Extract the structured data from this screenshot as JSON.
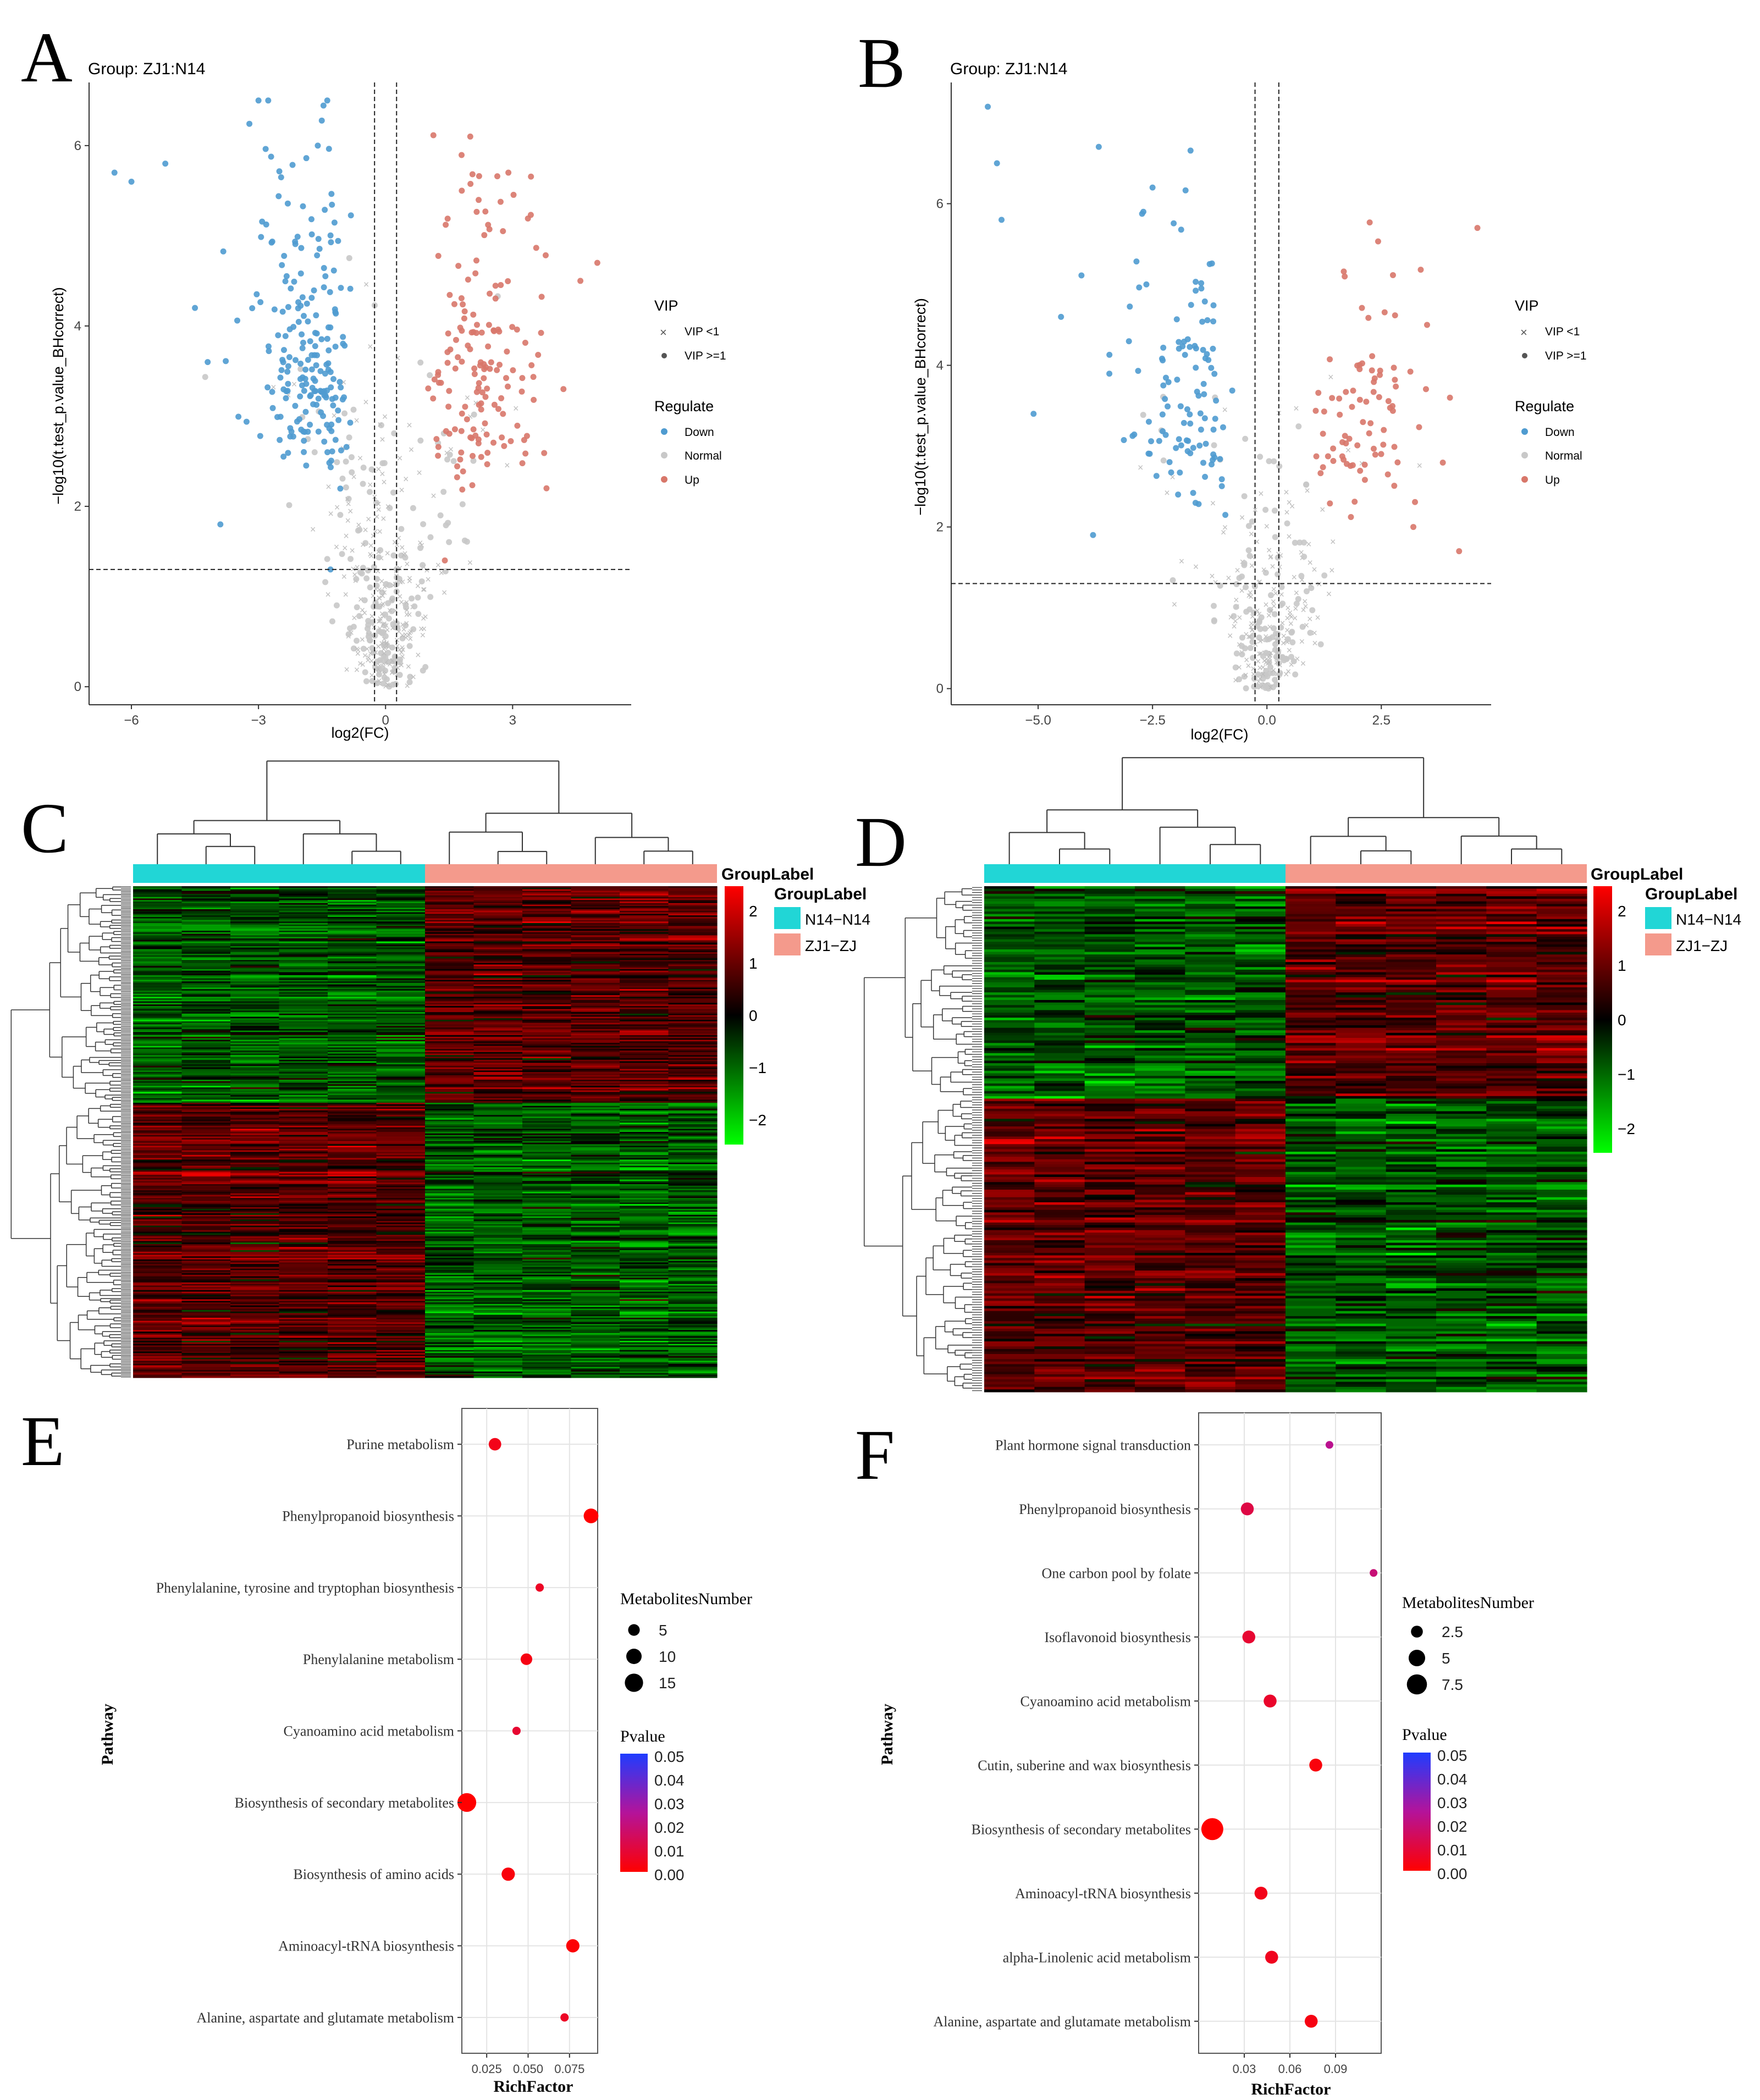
{
  "panel_letters": [
    "A",
    "B",
    "C",
    "D",
    "E",
    "F"
  ],
  "colors": {
    "down": "#4f9bd0",
    "normal": "#c8c8c8",
    "up": "#d8776a",
    "n14": "#21d6d6",
    "zj1": "#f49a8c",
    "heat_high": "#ff0000",
    "heat_mid": "#000000",
    "heat_low": "#00ff00",
    "p_low": "#ff0000",
    "p_high": "#1f3cff"
  },
  "volcano_legend": {
    "vip_title": "VIP",
    "vip_items": [
      "VIP <1",
      "VIP >=1"
    ],
    "reg_title": "Regulate",
    "reg_items": [
      "Down",
      "Normal",
      "Up"
    ]
  },
  "heatmap_legend": {
    "title": "GroupLabel",
    "groups": [
      "N14−N14",
      "ZJ1−ZJ"
    ],
    "ticks": [
      "2",
      "1",
      "0",
      "−1",
      "−2"
    ]
  },
  "enrichment_legend": {
    "size_title": "MetabolitesNumber",
    "p_title": "Pvalue",
    "p_ticks": [
      "0.05",
      "0.04",
      "0.03",
      "0.02",
      "0.01",
      "0.00"
    ]
  },
  "chart_data": [
    {
      "type": "scatter",
      "panel": "A",
      "title": "Group: ZJ1:N14",
      "xlabel": "log2(FC)",
      "ylabel": "−log10(t.test_p.value_BHcorrect)",
      "xlim": [
        -7,
        5.8
      ],
      "ylim": [
        -0.2,
        6.7
      ],
      "xticks": [
        -6,
        -3,
        0,
        3
      ],
      "xtick_labels": [
        "−6",
        "−3",
        "0",
        "3"
      ],
      "yticks": [
        0,
        2,
        4,
        6
      ],
      "fc_threshold": 0.26,
      "p_threshold": 1.3,
      "counts": {
        "down": 205,
        "up": 150,
        "normal": 420
      },
      "extremes": {
        "down": [
          [
            -6.4,
            5.7
          ],
          [
            -6.0,
            5.6
          ],
          [
            -5.2,
            5.8
          ],
          [
            -3.0,
            6.5
          ],
          [
            -1.6,
            6.0
          ],
          [
            -4.5,
            4.2
          ],
          [
            -4.2,
            3.6
          ],
          [
            -3.9,
            1.8
          ],
          [
            -1.3,
            1.3
          ]
        ],
        "up": [
          [
            2.0,
            6.1
          ],
          [
            1.8,
            5.5
          ],
          [
            2.9,
            5.7
          ],
          [
            5.0,
            4.7
          ],
          [
            4.6,
            4.5
          ],
          [
            4.2,
            3.3
          ],
          [
            3.8,
            2.2
          ],
          [
            1.4,
            1.4
          ]
        ]
      }
    },
    {
      "type": "scatter",
      "panel": "B",
      "title": "Group: ZJ1:N14",
      "xlabel": "log2(FC)",
      "ylabel": "−log10(t.test_p.value_BHcorrect)",
      "xlim": [
        -6.9,
        4.9
      ],
      "ylim": [
        -0.2,
        7.5
      ],
      "xticks": [
        -5,
        -2.5,
        0,
        2.5
      ],
      "xtick_labels": [
        "−5.0",
        "−2.5",
        "0.0",
        "2.5"
      ],
      "yticks": [
        0,
        2,
        4,
        6
      ],
      "fc_threshold": 0.26,
      "p_threshold": 1.3,
      "counts": {
        "down": 110,
        "up": 80,
        "normal": 300
      },
      "extremes": {
        "down": [
          [
            -6.1,
            7.2
          ],
          [
            -5.9,
            6.5
          ],
          [
            -5.8,
            5.8
          ],
          [
            -2.5,
            6.2
          ],
          [
            -2.7,
            5.9
          ],
          [
            -5.1,
            3.4
          ],
          [
            -4.5,
            4.6
          ],
          [
            -3.8,
            1.9
          ]
        ],
        "up": [
          [
            4.6,
            5.7
          ],
          [
            3.5,
            4.5
          ],
          [
            4.0,
            3.6
          ],
          [
            3.2,
            2.0
          ],
          [
            4.2,
            1.7
          ],
          [
            1.7,
            5.1
          ]
        ]
      }
    },
    {
      "type": "heatmap",
      "panel": "C",
      "groups": [
        "N14−N14",
        "ZJ1−ZJ"
      ],
      "samples_per_group": 6,
      "metabolites": 320,
      "upper_block_fraction": 0.44,
      "value_range": [
        -2.3,
        2.3
      ]
    },
    {
      "type": "heatmap",
      "panel": "D",
      "groups": [
        "N14−N14",
        "ZJ1−ZJ"
      ],
      "samples_per_group": 6,
      "metabolites": 200,
      "upper_block_fraction": 0.42,
      "value_range": [
        -2.3,
        2.3
      ]
    },
    {
      "type": "scatter",
      "panel": "E",
      "xlabel": "RichFactor",
      "ylabel": "Pathway",
      "xlim": [
        0.01,
        0.092
      ],
      "xticks": [
        0.025,
        0.05,
        0.075
      ],
      "xtick_labels": [
        "0.025",
        "0.050",
        "0.075"
      ],
      "size_legend": [
        5,
        10,
        15
      ],
      "size_range": [
        1,
        18
      ],
      "categories": [
        "Purine metabolism",
        "Phenylpropanoid biosynthesis",
        "Phenylalanine, tyrosine and tryptophan biosynthesis",
        "Phenylalanine metabolism",
        "Cyanoamino acid metabolism",
        "Biosynthesis of secondary metabolites",
        "Biosynthesis of amino acids",
        "Aminoacyl-tRNA biosynthesis",
        "Alanine, aspartate and glutamate metabolism"
      ],
      "rich_factor": [
        0.03,
        0.088,
        0.057,
        0.049,
        0.043,
        0.013,
        0.038,
        0.077,
        0.072
      ],
      "metabolites_number": [
        6,
        9,
        2,
        5,
        2,
        16,
        7,
        7,
        2
      ],
      "pvalue": [
        0.004,
        0.0,
        0.006,
        0.003,
        0.008,
        0.0,
        0.002,
        0.001,
        0.006
      ]
    },
    {
      "type": "scatter",
      "panel": "F",
      "xlabel": "RichFactor",
      "ylabel": "Pathway",
      "xlim": [
        0.0,
        0.12
      ],
      "xticks": [
        0.03,
        0.06,
        0.09
      ],
      "xtick_labels": [
        "0.03",
        "0.06",
        "0.09"
      ],
      "size_legend": [
        2.5,
        5.0,
        7.5
      ],
      "size_range": [
        1,
        9
      ],
      "categories": [
        "Plant hormone signal transduction",
        "Phenylpropanoid biosynthesis",
        "One carbon pool by folate",
        "Isoflavonoid biosynthesis",
        "Cyanoamino acid metabolism",
        "Cutin, suberine and wax biosynthesis",
        "Biosynthesis of secondary metabolites",
        "Aminoacyl-tRNA biosynthesis",
        "alpha-Linolenic acid metabolism",
        "Alanine, aspartate and glutamate metabolism"
      ],
      "rich_factor": [
        0.086,
        0.032,
        0.115,
        0.033,
        0.047,
        0.077,
        0.009,
        0.041,
        0.048,
        0.074
      ],
      "metabolites_number": [
        1,
        3,
        1,
        3,
        3,
        3,
        9,
        3,
        3,
        3
      ],
      "pvalue": [
        0.023,
        0.011,
        0.019,
        0.008,
        0.007,
        0.002,
        0.0,
        0.004,
        0.005,
        0.003
      ]
    }
  ]
}
